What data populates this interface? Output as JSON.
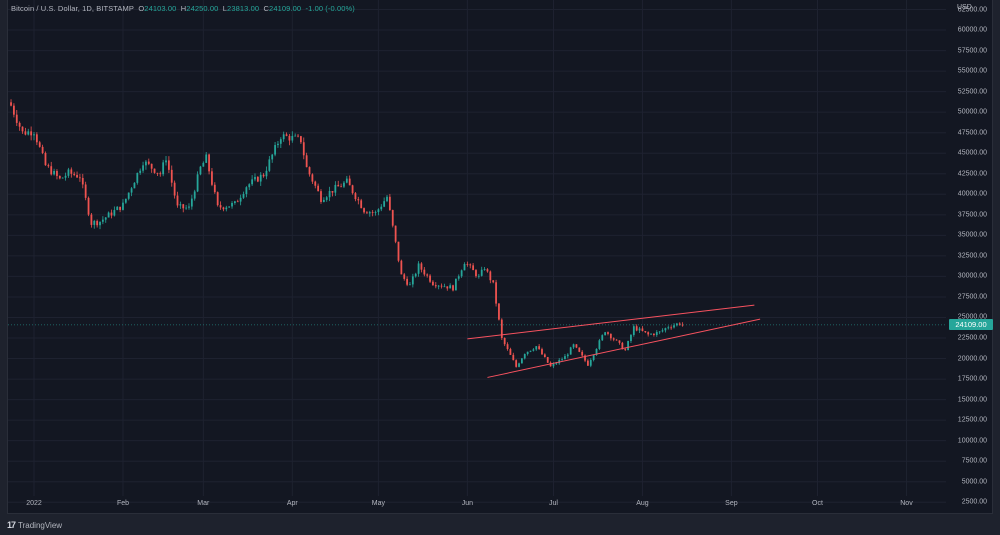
{
  "legend": {
    "symbol": "Bitcoin / U.S. Dollar, 1D, BITSTAMP",
    "open_label": "O",
    "open": "24103.00",
    "high_label": "H",
    "high": "24250.00",
    "low_label": "L",
    "low": "23813.00",
    "close_label": "C",
    "close": "24109.00",
    "change": "-1.00 (-0.00%)"
  },
  "price_axis": {
    "currency": "USD",
    "ticks": [
      "62500.00",
      "60000.00",
      "57500.00",
      "55000.00",
      "52500.00",
      "50000.00",
      "47500.00",
      "45000.00",
      "42500.00",
      "40000.00",
      "37500.00",
      "35000.00",
      "32500.00",
      "30000.00",
      "27500.00",
      "25000.00",
      "22500.00",
      "20000.00",
      "17500.00",
      "15000.00",
      "12500.00",
      "10000.00",
      "7500.00",
      "5000.00",
      "2500.00"
    ],
    "last_price": "24109.00"
  },
  "time_axis": {
    "labels": [
      "2022",
      "Feb",
      "Mar",
      "Apr",
      "May",
      "Jun",
      "Jul",
      "Aug",
      "Sep",
      "Oct",
      "Nov"
    ]
  },
  "footer": {
    "brand_logo": "17",
    "brand": "TradingView"
  },
  "colors": {
    "up": "#26a69a",
    "down": "#ef5350",
    "trendline": "#f7525f",
    "background": "#131722",
    "grid": "#1e2230"
  },
  "chart_data": {
    "type": "candlestick",
    "title": "Bitcoin / U.S. Dollar, 1D, BITSTAMP",
    "xlabel": "",
    "ylabel": "USD",
    "ylim": [
      2500,
      62500
    ],
    "grid": true,
    "x_ticks": [
      "2022",
      "Feb",
      "Mar",
      "Apr",
      "May",
      "Jun",
      "Jul",
      "Aug",
      "Sep",
      "Oct",
      "Nov"
    ],
    "last_close": 24109,
    "anchors": [
      {
        "date": "2021-12-24",
        "close": 50800
      },
      {
        "date": "2021-12-28",
        "close": 47500
      },
      {
        "date": "2022-01-01",
        "close": 47700
      },
      {
        "date": "2022-01-05",
        "close": 43500
      },
      {
        "date": "2022-01-10",
        "close": 41800
      },
      {
        "date": "2022-01-13",
        "close": 42600
      },
      {
        "date": "2022-01-17",
        "close": 42200
      },
      {
        "date": "2022-01-21",
        "close": 36500
      },
      {
        "date": "2022-01-24",
        "close": 36700
      },
      {
        "date": "2022-01-28",
        "close": 37700
      },
      {
        "date": "2022-02-01",
        "close": 38700
      },
      {
        "date": "2022-02-08",
        "close": 44000
      },
      {
        "date": "2022-02-10",
        "close": 43500
      },
      {
        "date": "2022-02-14",
        "close": 42500
      },
      {
        "date": "2022-02-16",
        "close": 44500
      },
      {
        "date": "2022-02-20",
        "close": 38400
      },
      {
        "date": "2022-02-24",
        "close": 38300
      },
      {
        "date": "2022-02-28",
        "close": 43200
      },
      {
        "date": "2022-03-02",
        "close": 44400
      },
      {
        "date": "2022-03-06",
        "close": 38400
      },
      {
        "date": "2022-03-12",
        "close": 38800
      },
      {
        "date": "2022-03-16",
        "close": 41000
      },
      {
        "date": "2022-03-22",
        "close": 42400
      },
      {
        "date": "2022-03-28",
        "close": 47100
      },
      {
        "date": "2022-03-30",
        "close": 47000
      },
      {
        "date": "2022-04-04",
        "close": 46600
      },
      {
        "date": "2022-04-06",
        "close": 43200
      },
      {
        "date": "2022-04-11",
        "close": 39500
      },
      {
        "date": "2022-04-15",
        "close": 40500
      },
      {
        "date": "2022-04-20",
        "close": 41500
      },
      {
        "date": "2022-04-26",
        "close": 38100
      },
      {
        "date": "2022-04-30",
        "close": 37700
      },
      {
        "date": "2022-05-04",
        "close": 39700
      },
      {
        "date": "2022-05-06",
        "close": 36000
      },
      {
        "date": "2022-05-09",
        "close": 30100
      },
      {
        "date": "2022-05-12",
        "close": 28900
      },
      {
        "date": "2022-05-15",
        "close": 31300
      },
      {
        "date": "2022-05-20",
        "close": 29200
      },
      {
        "date": "2022-05-27",
        "close": 28600
      },
      {
        "date": "2022-05-31",
        "close": 31800
      },
      {
        "date": "2022-06-05",
        "close": 29900
      },
      {
        "date": "2022-06-07",
        "close": 31100
      },
      {
        "date": "2022-06-10",
        "close": 29000
      },
      {
        "date": "2022-06-13",
        "close": 22400
      },
      {
        "date": "2022-06-18",
        "close": 19000
      },
      {
        "date": "2022-06-21",
        "close": 20700
      },
      {
        "date": "2022-06-25",
        "close": 21500
      },
      {
        "date": "2022-06-30",
        "close": 19000
      },
      {
        "date": "2022-07-05",
        "close": 20200
      },
      {
        "date": "2022-07-08",
        "close": 21600
      },
      {
        "date": "2022-07-13",
        "close": 19300
      },
      {
        "date": "2022-07-19",
        "close": 23400
      },
      {
        "date": "2022-07-26",
        "close": 21000
      },
      {
        "date": "2022-07-29",
        "close": 23800
      },
      {
        "date": "2022-08-03",
        "close": 22900
      },
      {
        "date": "2022-08-07",
        "close": 23200
      },
      {
        "date": "2022-08-10",
        "close": 23900
      },
      {
        "date": "2022-08-14",
        "close": 24300
      },
      {
        "date": "2022-08-15",
        "close": 24109
      }
    ],
    "trendlines": [
      {
        "name": "upper",
        "from": {
          "date": "2022-06-01",
          "price": 22400
        },
        "to": {
          "date": "2022-09-09",
          "price": 26500
        }
      },
      {
        "name": "lower",
        "from": {
          "date": "2022-06-08",
          "price": 17700
        },
        "to": {
          "date": "2022-09-11",
          "price": 24800
        }
      }
    ]
  }
}
